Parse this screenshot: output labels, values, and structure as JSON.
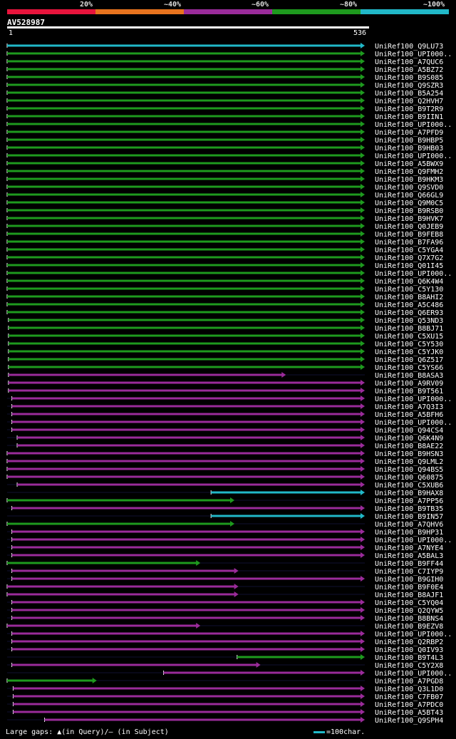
{
  "query_id": "AV528987",
  "scale": {
    "start": "1",
    "end": "536",
    "length": 536
  },
  "identity_legend": [
    {
      "label": "20%",
      "color": "#e8143c"
    },
    {
      "label": "~40%",
      "color": "#e8731e"
    },
    {
      "label": "~60%",
      "color": "#9a2b9a"
    },
    {
      "label": "~80%",
      "color": "#1e9a1e"
    },
    {
      "label": "~100%",
      "color": "#21b8c8"
    }
  ],
  "footer": {
    "gaps_legend": "Large gaps: ▲(in Query)/– (in Subject)",
    "scale_legend": "=100char."
  },
  "hits": [
    {
      "name": "UniRef100_Q9LU73",
      "identity": 5,
      "start": 1,
      "end": 536
    },
    {
      "name": "UniRef100_UPI000..",
      "identity": 4,
      "start": 1,
      "end": 536
    },
    {
      "name": "UniRef100_A7QUC6",
      "identity": 4,
      "start": 1,
      "end": 536
    },
    {
      "name": "UniRef100_A5BZ72",
      "identity": 4,
      "start": 1,
      "end": 536
    },
    {
      "name": "UniRef100_B9S085",
      "identity": 4,
      "start": 1,
      "end": 536
    },
    {
      "name": "UniRef100_Q9SZR3",
      "identity": 4,
      "start": 1,
      "end": 536
    },
    {
      "name": "UniRef100_B5A254",
      "identity": 4,
      "start": 1,
      "end": 536
    },
    {
      "name": "UniRef100_Q2HVH7",
      "identity": 4,
      "start": 1,
      "end": 536
    },
    {
      "name": "UniRef100_B9T2R9",
      "identity": 4,
      "start": 1,
      "end": 536
    },
    {
      "name": "UniRef100_B9IIN1",
      "identity": 4,
      "start": 1,
      "end": 536
    },
    {
      "name": "UniRef100_UPI000..",
      "identity": 4,
      "start": 1,
      "end": 536
    },
    {
      "name": "UniRef100_A7PFD9",
      "identity": 4,
      "start": 1,
      "end": 536
    },
    {
      "name": "UniRef100_B9HBP5",
      "identity": 4,
      "start": 1,
      "end": 536
    },
    {
      "name": "UniRef100_B9HB03",
      "identity": 4,
      "start": 1,
      "end": 536
    },
    {
      "name": "UniRef100_UPI000..",
      "identity": 4,
      "start": 1,
      "end": 536
    },
    {
      "name": "UniRef100_A5BWX9",
      "identity": 4,
      "start": 1,
      "end": 536
    },
    {
      "name": "UniRef100_Q9FMH2",
      "identity": 4,
      "start": 1,
      "end": 536
    },
    {
      "name": "UniRef100_B9HKM3",
      "identity": 4,
      "start": 1,
      "end": 536
    },
    {
      "name": "UniRef100_Q9SVD0",
      "identity": 4,
      "start": 1,
      "end": 536
    },
    {
      "name": "UniRef100_Q66GL9",
      "identity": 4,
      "start": 1,
      "end": 536
    },
    {
      "name": "UniRef100_Q9M0C5",
      "identity": 4,
      "start": 1,
      "end": 536
    },
    {
      "name": "UniRef100_B9RSB0",
      "identity": 4,
      "start": 1,
      "end": 536
    },
    {
      "name": "UniRef100_B9HVK7",
      "identity": 4,
      "start": 1,
      "end": 536
    },
    {
      "name": "UniRef100_Q0JEB9",
      "identity": 4,
      "start": 1,
      "end": 536
    },
    {
      "name": "UniRef100_B9FEB8",
      "identity": 4,
      "start": 1,
      "end": 536
    },
    {
      "name": "UniRef100_B7FA96",
      "identity": 4,
      "start": 1,
      "end": 536
    },
    {
      "name": "UniRef100_C5YGA4",
      "identity": 4,
      "start": 1,
      "end": 536
    },
    {
      "name": "UniRef100_Q7X7G2",
      "identity": 4,
      "start": 1,
      "end": 536
    },
    {
      "name": "UniRef100_Q01I45",
      "identity": 4,
      "start": 1,
      "end": 536
    },
    {
      "name": "UniRef100_UPI000..",
      "identity": 4,
      "start": 1,
      "end": 536
    },
    {
      "name": "UniRef100_Q6K4W4",
      "identity": 4,
      "start": 1,
      "end": 536
    },
    {
      "name": "UniRef100_C5Y130",
      "identity": 4,
      "start": 1,
      "end": 536
    },
    {
      "name": "UniRef100_B8AHI2",
      "identity": 4,
      "start": 1,
      "end": 536
    },
    {
      "name": "UniRef100_A5C486",
      "identity": 4,
      "start": 1,
      "end": 536
    },
    {
      "name": "UniRef100_Q6ER93",
      "identity": 4,
      "start": 1,
      "end": 536
    },
    {
      "name": "UniRef100_Q53ND3",
      "identity": 4,
      "start": 3,
      "end": 536
    },
    {
      "name": "UniRef100_B8BJ71",
      "identity": 4,
      "start": 3,
      "end": 536
    },
    {
      "name": "UniRef100_C5XU15",
      "identity": 4,
      "start": 3,
      "end": 536
    },
    {
      "name": "UniRef100_C5Y530",
      "identity": 4,
      "start": 3,
      "end": 536
    },
    {
      "name": "UniRef100_C5YJK0",
      "identity": 4,
      "start": 3,
      "end": 536
    },
    {
      "name": "UniRef100_Q6Z517",
      "identity": 4,
      "start": 3,
      "end": 536
    },
    {
      "name": "UniRef100_C5YS66",
      "identity": 4,
      "start": 3,
      "end": 536
    },
    {
      "name": "UniRef100_B8ASA3",
      "identity": 3,
      "start": 3,
      "end": 418
    },
    {
      "name": "UniRef100_A9RV09",
      "identity": 3,
      "start": 3,
      "end": 536
    },
    {
      "name": "UniRef100_B9T561",
      "identity": 3,
      "start": 3,
      "end": 536
    },
    {
      "name": "UniRef100_UPI000..",
      "identity": 3,
      "start": 8,
      "end": 536
    },
    {
      "name": "UniRef100_A7Q3I3",
      "identity": 3,
      "start": 8,
      "end": 536
    },
    {
      "name": "UniRef100_A5BFH6",
      "identity": 3,
      "start": 8,
      "end": 536
    },
    {
      "name": "UniRef100_UPI000..",
      "identity": 3,
      "start": 8,
      "end": 536
    },
    {
      "name": "UniRef100_Q94CS4",
      "identity": 3,
      "start": 8,
      "end": 536
    },
    {
      "name": "UniRef100_Q6K4N9",
      "identity": 3,
      "start": 16,
      "end": 536
    },
    {
      "name": "UniRef100_B8AE22",
      "identity": 3,
      "start": 16,
      "end": 536
    },
    {
      "name": "UniRef100_B9HSN3",
      "identity": 3,
      "start": 1,
      "end": 536
    },
    {
      "name": "UniRef100_Q9LML2",
      "identity": 3,
      "start": 1,
      "end": 536
    },
    {
      "name": "UniRef100_Q94BS5",
      "identity": 3,
      "start": 1,
      "end": 536
    },
    {
      "name": "UniRef100_Q60875",
      "identity": 3,
      "start": 1,
      "end": 536
    },
    {
      "name": "UniRef100_C5XUB6",
      "identity": 3,
      "start": 16,
      "end": 536
    },
    {
      "name": "UniRef100_B9HAX8",
      "identity": 5,
      "start": 306,
      "end": 536
    },
    {
      "name": "UniRef100_A7PP56",
      "identity": 4,
      "start": 1,
      "end": 341
    },
    {
      "name": "UniRef100_B9TB35",
      "identity": 3,
      "start": 8,
      "end": 536
    },
    {
      "name": "UniRef100_B9IN57",
      "identity": 5,
      "start": 306,
      "end": 536
    },
    {
      "name": "UniRef100_A7QHV6",
      "identity": 4,
      "start": 1,
      "end": 341
    },
    {
      "name": "UniRef100_B9HP31",
      "identity": 3,
      "start": 8,
      "end": 536
    },
    {
      "name": "UniRef100_UPI000..",
      "identity": 3,
      "start": 8,
      "end": 536
    },
    {
      "name": "UniRef100_A7NYE4",
      "identity": 3,
      "start": 8,
      "end": 536
    },
    {
      "name": "UniRef100_A5BAL3",
      "identity": 3,
      "start": 8,
      "end": 536
    },
    {
      "name": "UniRef100_B9FF44",
      "identity": 4,
      "start": 1,
      "end": 290
    },
    {
      "name": "UniRef100_C7IYP9",
      "identity": 3,
      "start": 8,
      "end": 347
    },
    {
      "name": "UniRef100_B9GIH0",
      "identity": 3,
      "start": 8,
      "end": 536
    },
    {
      "name": "UniRef100_B9F0E4",
      "identity": 3,
      "start": 1,
      "end": 347
    },
    {
      "name": "UniRef100_B8AJF1",
      "identity": 3,
      "start": 1,
      "end": 347
    },
    {
      "name": "UniRef100_C5YQ04",
      "identity": 3,
      "start": 8,
      "end": 536
    },
    {
      "name": "UniRef100_Q2QYW5",
      "identity": 3,
      "start": 8,
      "end": 536
    },
    {
      "name": "UniRef100_B8BNS4",
      "identity": 3,
      "start": 8,
      "end": 536
    },
    {
      "name": "UniRef100_B9EZV8",
      "identity": 3,
      "start": 1,
      "end": 290
    },
    {
      "name": "UniRef100_UPI000..",
      "identity": 3,
      "start": 8,
      "end": 536
    },
    {
      "name": "UniRef100_Q2RBP2",
      "identity": 3,
      "start": 8,
      "end": 536
    },
    {
      "name": "UniRef100_Q0IV93",
      "identity": 3,
      "start": 8,
      "end": 536
    },
    {
      "name": "UniRef100_B9T4L3",
      "identity": 4,
      "start": 345,
      "end": 536
    },
    {
      "name": "UniRef100_C5Y2X8",
      "identity": 3,
      "start": 8,
      "end": 380
    },
    {
      "name": "UniRef100_UPI000..",
      "identity": 3,
      "start": 235,
      "end": 536
    },
    {
      "name": "UniRef100_A7PGD8",
      "identity": 4,
      "start": 1,
      "end": 135
    },
    {
      "name": "UniRef100_Q3L1D0",
      "identity": 3,
      "start": 10,
      "end": 536
    },
    {
      "name": "UniRef100_C7FB07",
      "identity": 3,
      "start": 10,
      "end": 536
    },
    {
      "name": "UniRef100_A7PDC0",
      "identity": 3,
      "start": 10,
      "end": 536
    },
    {
      "name": "UniRef100_A5BT43",
      "identity": 3,
      "start": 10,
      "end": 536
    },
    {
      "name": "UniRef100_Q9SPH4",
      "identity": 3,
      "start": 57,
      "end": 536
    }
  ]
}
